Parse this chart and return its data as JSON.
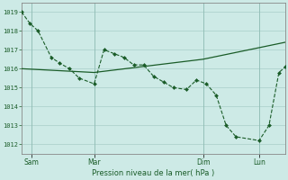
{
  "xlabel": "Pression niveau de la mer( hPa )",
  "bg_color": "#cdeae6",
  "grid_color": "#a8cec8",
  "line_color": "#1a5c28",
  "ylim": [
    1011.5,
    1019.5
  ],
  "yticks": [
    1012,
    1013,
    1014,
    1015,
    1016,
    1017,
    1018,
    1019
  ],
  "xlim_days": [
    0,
    8.0
  ],
  "x_tick_positions": [
    0.3,
    2.2,
    5.5,
    7.2
  ],
  "x_tick_labels": [
    "Sam",
    "Mar",
    "Dim",
    "Lun"
  ],
  "x_vline_positions": [
    0.3,
    2.2,
    5.5,
    7.2
  ],
  "series1_x": [
    0.0,
    0.25,
    0.5,
    0.9,
    1.15,
    1.45,
    1.75,
    2.2,
    2.5,
    2.8,
    3.1,
    3.4,
    3.7,
    4.0,
    4.3,
    4.6,
    5.0,
    5.3,
    5.6,
    5.9,
    6.2,
    6.5,
    7.2,
    7.5,
    7.8,
    8.0
  ],
  "series1_y": [
    1019.0,
    1018.4,
    1018.0,
    1016.6,
    1016.3,
    1016.0,
    1015.5,
    1015.2,
    1017.0,
    1016.8,
    1016.6,
    1016.2,
    1016.2,
    1015.6,
    1015.3,
    1015.0,
    1014.9,
    1015.4,
    1015.2,
    1014.6,
    1013.0,
    1012.4,
    1012.2,
    1013.0,
    1015.8,
    1016.1
  ],
  "series2_x": [
    0.0,
    2.2,
    5.5,
    8.0
  ],
  "series2_y": [
    1016.0,
    1015.8,
    1016.5,
    1017.4
  ],
  "figsize": [
    3.2,
    2.0
  ],
  "dpi": 100
}
